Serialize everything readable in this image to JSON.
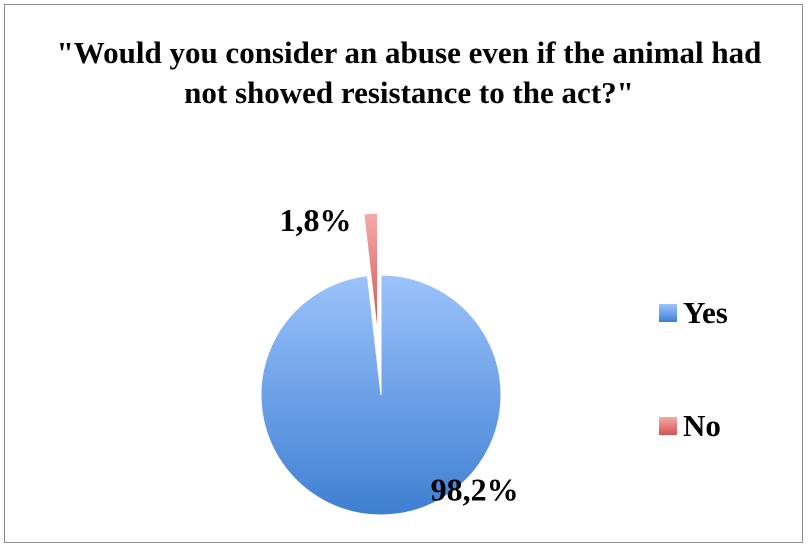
{
  "chart_data": {
    "type": "pie",
    "title": "\"Would you consider an abuse even if the animal had not showed resistance to the act?\"",
    "categories": [
      "Yes",
      "No"
    ],
    "values": [
      98.2,
      1.8
    ],
    "data_labels": [
      "98,2%",
      "1,8%"
    ],
    "colors": [
      "#6f9fe6",
      "#e07070"
    ],
    "legend_position": "right",
    "exploded_slice": "No"
  }
}
